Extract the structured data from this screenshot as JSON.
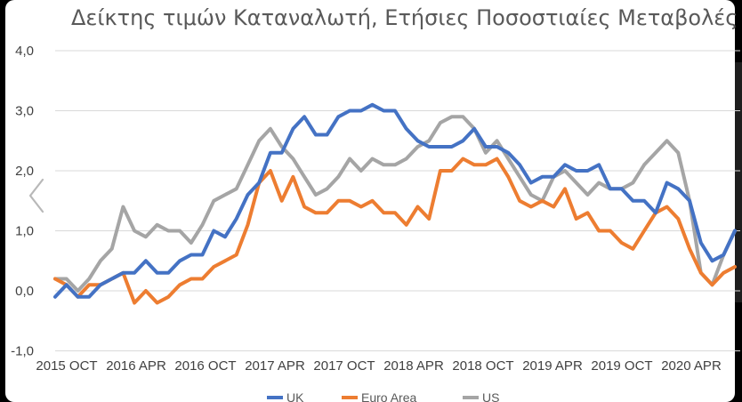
{
  "chart_data": {
    "type": "line",
    "title": "Δείκτης τιμών Καταναλωτή, Ετήσιες Ποσοστιαίες Μεταβολές",
    "ylim": [
      -1.0,
      4.0
    ],
    "yticks": [
      "-1,0",
      "0,0",
      "1,0",
      "2,0",
      "3,0",
      "4,0"
    ],
    "xticks": [
      "2015 OCT",
      "2016 APR",
      "2016 OCT",
      "2017 APR",
      "2017 OCT",
      "2018 APR",
      "2018 OCT",
      "2019 APR",
      "2019 OCT",
      "2020 APR"
    ],
    "grid": true,
    "legend_position": "bottom",
    "x": [
      "2015-07",
      "2015-08",
      "2015-09",
      "2015-10",
      "2015-11",
      "2015-12",
      "2016-01",
      "2016-02",
      "2016-03",
      "2016-04",
      "2016-05",
      "2016-06",
      "2016-07",
      "2016-08",
      "2016-09",
      "2016-10",
      "2016-11",
      "2016-12",
      "2017-01",
      "2017-02",
      "2017-03",
      "2017-04",
      "2017-05",
      "2017-06",
      "2017-07",
      "2017-08",
      "2017-09",
      "2017-10",
      "2017-11",
      "2017-12",
      "2018-01",
      "2018-02",
      "2018-03",
      "2018-04",
      "2018-05",
      "2018-06",
      "2018-07",
      "2018-08",
      "2018-09",
      "2018-10",
      "2018-11",
      "2018-12",
      "2019-01",
      "2019-02",
      "2019-03",
      "2019-04",
      "2019-05",
      "2019-06",
      "2019-07",
      "2019-08",
      "2019-09",
      "2019-10",
      "2019-11",
      "2019-12",
      "2020-01",
      "2020-02",
      "2020-03",
      "2020-04",
      "2020-05",
      "2020-06",
      "2020-07"
    ],
    "series": [
      {
        "name": "UK",
        "color": "#4472C4",
        "values": [
          -0.1,
          0.1,
          -0.1,
          -0.1,
          0.1,
          0.2,
          0.3,
          0.3,
          0.5,
          0.3,
          0.3,
          0.5,
          0.6,
          0.6,
          1.0,
          0.9,
          1.2,
          1.6,
          1.8,
          2.3,
          2.3,
          2.7,
          2.9,
          2.6,
          2.6,
          2.9,
          3.0,
          3.0,
          3.1,
          3.0,
          3.0,
          2.7,
          2.5,
          2.4,
          2.4,
          2.4,
          2.5,
          2.7,
          2.4,
          2.4,
          2.3,
          2.1,
          1.8,
          1.9,
          1.9,
          2.1,
          2.0,
          2.0,
          2.1,
          1.7,
          1.7,
          1.5,
          1.5,
          1.3,
          1.8,
          1.7,
          1.5,
          0.8,
          0.5,
          0.6,
          1.0
        ]
      },
      {
        "name": "Euro Area",
        "color": "#ED7D31",
        "values": [
          0.2,
          0.1,
          -0.1,
          0.1,
          0.1,
          0.2,
          0.3,
          -0.2,
          0.0,
          -0.2,
          -0.1,
          0.1,
          0.2,
          0.2,
          0.4,
          0.5,
          0.6,
          1.1,
          1.8,
          2.0,
          1.5,
          1.9,
          1.4,
          1.3,
          1.3,
          1.5,
          1.5,
          1.4,
          1.5,
          1.3,
          1.3,
          1.1,
          1.4,
          1.2,
          2.0,
          2.0,
          2.2,
          2.1,
          2.1,
          2.2,
          1.9,
          1.5,
          1.4,
          1.5,
          1.4,
          1.7,
          1.2,
          1.3,
          1.0,
          1.0,
          0.8,
          0.7,
          1.0,
          1.3,
          1.4,
          1.2,
          0.7,
          0.3,
          0.1,
          0.3,
          0.4
        ]
      },
      {
        "name": "US",
        "color": "#A5A5A5",
        "values": [
          0.2,
          0.2,
          0.0,
          0.2,
          0.5,
          0.7,
          1.4,
          1.0,
          0.9,
          1.1,
          1.0,
          1.0,
          0.8,
          1.1,
          1.5,
          1.6,
          1.7,
          2.1,
          2.5,
          2.7,
          2.4,
          2.2,
          1.9,
          1.6,
          1.7,
          1.9,
          2.2,
          2.0,
          2.2,
          2.1,
          2.1,
          2.2,
          2.4,
          2.5,
          2.8,
          2.9,
          2.9,
          2.7,
          2.3,
          2.5,
          2.2,
          1.9,
          1.6,
          1.5,
          1.9,
          2.0,
          1.8,
          1.6,
          1.8,
          1.7,
          1.7,
          1.8,
          2.1,
          2.3,
          2.5,
          2.3,
          1.5,
          0.3,
          0.1,
          0.6,
          1.0
        ]
      }
    ]
  }
}
